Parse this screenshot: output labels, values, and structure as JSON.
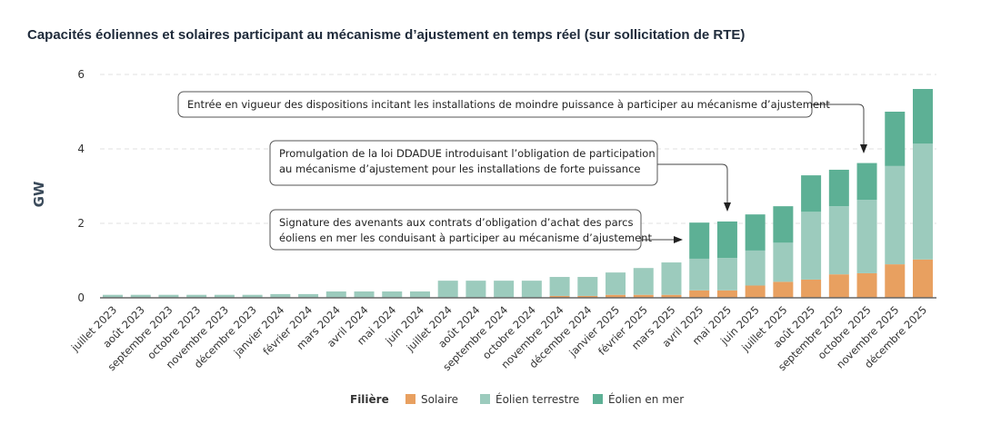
{
  "chart_data": {
    "type": "bar",
    "stacked": true,
    "title": "Capacités éoliennes et solaires participant au mécanisme d’ajustement en temps réel (sur sollicitation de RTE)",
    "ylabel": "GW",
    "xlabel": "",
    "ylim": [
      0,
      6
    ],
    "yticks": [
      0,
      2,
      4,
      6
    ],
    "grid": "horizontal dashed",
    "categories": [
      "juillet 2023",
      "août 2023",
      "septembre 2023",
      "octobre 2023",
      "novembre 2023",
      "décembre 2023",
      "janvier 2024",
      "février 2024",
      "mars 2024",
      "avril 2024",
      "mai 2024",
      "juin 2024",
      "juillet 2024",
      "août 2024",
      "septembre 2024",
      "octobre 2024",
      "novembre 2024",
      "décembre 2024",
      "janvier 2025",
      "février 2025",
      "mars 2025",
      "avril 2025",
      "mai 2025",
      "juin 2025",
      "juillet 2025",
      "août 2025",
      "septembre 2025",
      "octobre 2025",
      "novembre 2025",
      "décembre 2025"
    ],
    "legend_title": "Filière",
    "legend_position": "bottom",
    "series": [
      {
        "name": "Solaire",
        "color": "#e8a060",
        "values": [
          0,
          0,
          0,
          0,
          0,
          0,
          0,
          0,
          0,
          0,
          0,
          0,
          0,
          0,
          0,
          0,
          0.05,
          0.05,
          0.08,
          0.08,
          0.08,
          0.2,
          0.2,
          0.33,
          0.43,
          0.49,
          0.63,
          0.66,
          0.9,
          1.03
        ]
      },
      {
        "name": "Éolien terrestre",
        "color": "#9ccbbd",
        "values": [
          0.08,
          0.08,
          0.08,
          0.08,
          0.08,
          0.08,
          0.1,
          0.1,
          0.17,
          0.17,
          0.17,
          0.17,
          0.46,
          0.46,
          0.46,
          0.46,
          0.51,
          0.51,
          0.6,
          0.72,
          0.87,
          0.85,
          0.87,
          0.94,
          1.05,
          1.82,
          1.83,
          1.97,
          2.64,
          3.11
        ]
      },
      {
        "name": "Éolien en mer",
        "color": "#5db095",
        "values": [
          0,
          0,
          0,
          0,
          0,
          0,
          0,
          0,
          0,
          0,
          0,
          0,
          0,
          0,
          0,
          0,
          0,
          0,
          0,
          0,
          0,
          0.97,
          0.98,
          0.97,
          0.98,
          0.98,
          0.98,
          0.99,
          1.46,
          1.47
        ]
      }
    ],
    "annotations": [
      {
        "category": "septembre 2025",
        "text": [
          "Entrée en vigueur des dispositions incitant les installations de moindre puissance à participer au mécanisme d’ajustement"
        ]
      },
      {
        "category": "mai 2025",
        "text": [
          "Promulgation de la loi DDADUE introduisant l’obligation de participation",
          "au mécanisme d’ajustement pour les installations de forte puissance"
        ]
      },
      {
        "category": "avril 2025",
        "text": [
          "Signature des avenants aux contrats d’obligation d’achat des parcs",
          "éoliens en mer les conduisant à participer au mécanisme d’ajustement"
        ]
      }
    ]
  }
}
